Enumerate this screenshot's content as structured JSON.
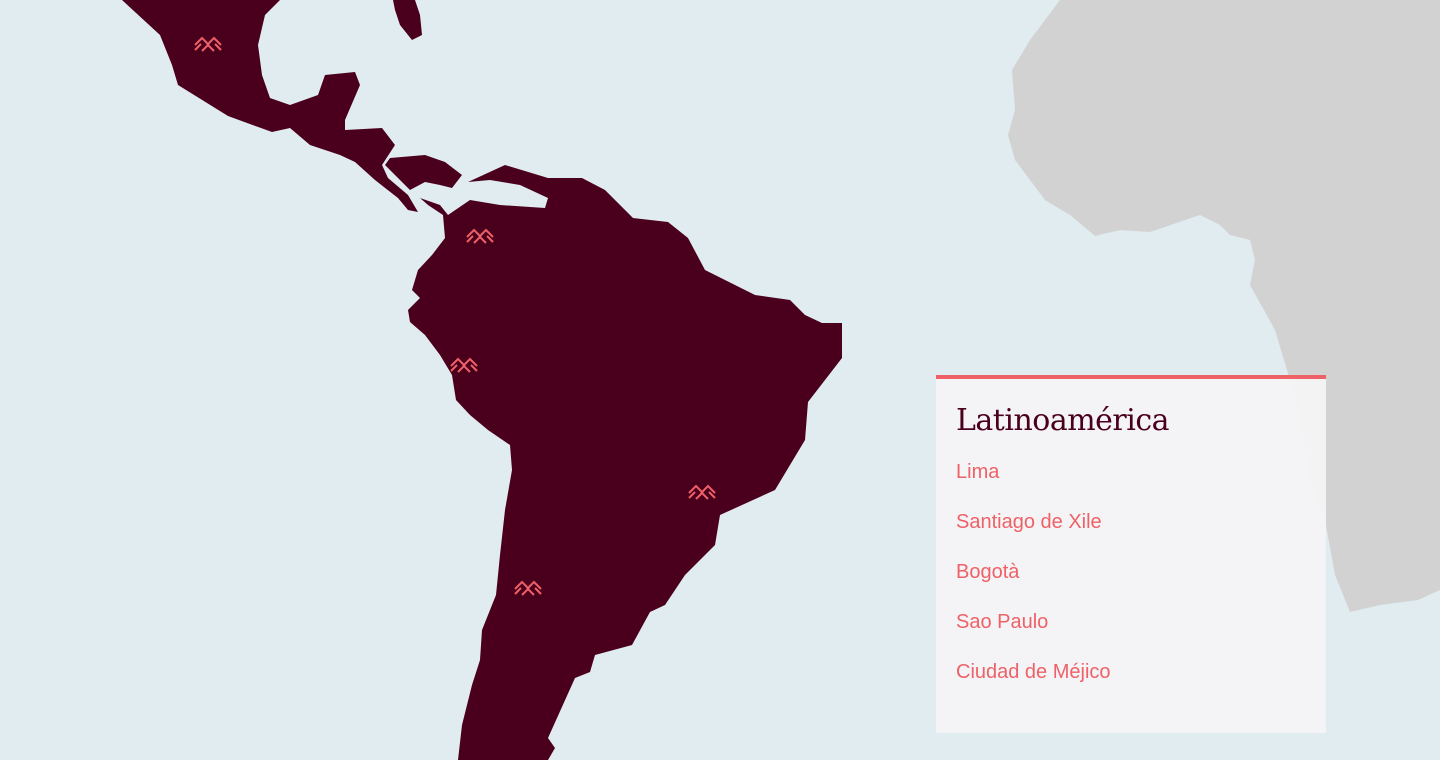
{
  "colors": {
    "ocean": "#e1ecf0",
    "latin_america": "#4a001d",
    "africa": "#d2d2d2",
    "accent": "#ee6167",
    "panel": "#f4f4f5"
  },
  "marker_icon": "double-chevron-up-icon",
  "panel": {
    "title": "Latinoamérica",
    "cities": [
      {
        "name": "Lima"
      },
      {
        "name": "Santiago de Xile"
      },
      {
        "name": "Bogotà"
      },
      {
        "name": "Sao Paulo"
      },
      {
        "name": "Ciudad de Méjico"
      }
    ]
  }
}
